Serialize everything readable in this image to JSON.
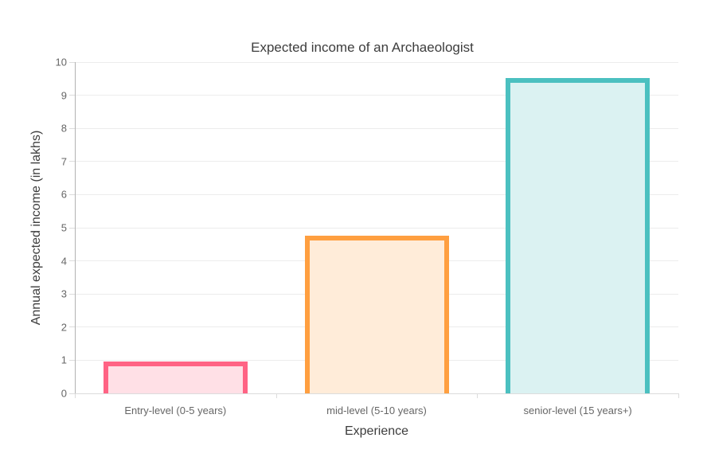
{
  "chart_data": {
    "type": "bar",
    "title": "Expected income of an Archaeologist",
    "xlabel": "Experience",
    "ylabel": "Annual expected income (in lakhs)",
    "categories": [
      "Entry-level (0-5 years)",
      "mid-level (5-10 years)",
      "senior-level (15 years+)"
    ],
    "values": [
      0.97,
      4.75,
      9.52
    ],
    "ylim": [
      0,
      10
    ],
    "ytick_step": 1,
    "grid": "horizontal-only",
    "legend": "none",
    "bar_border_colors": [
      "#FF6384",
      "#FF9F40",
      "#4BC0C0"
    ],
    "bar_fill_colors": [
      "#FFE0E6",
      "#FFECD9",
      "#DBF2F2"
    ],
    "colors": {
      "tick_label": "#666666",
      "axis_title": "#3d3d3d",
      "gridline": "#ececec",
      "baseline": "#dcdcdc",
      "y_axis_line": "#b3b3b3",
      "background": "#ffffff"
    }
  }
}
